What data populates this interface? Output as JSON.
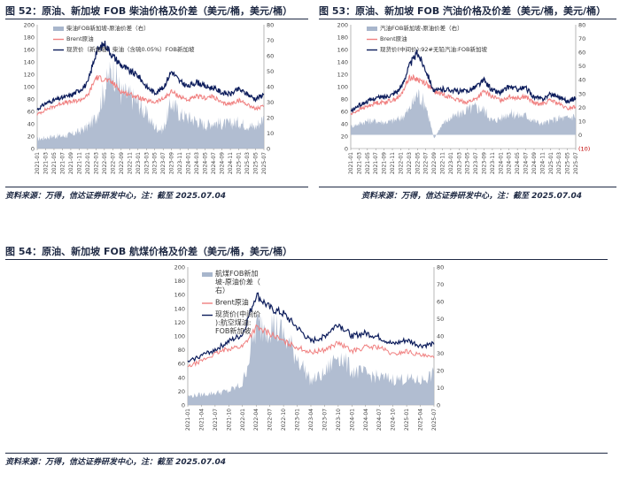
{
  "figures": [
    {
      "title": "图 52：原油、新加坡 FOB 柴油价格及价差（美元/桶，美元/桶）",
      "source": "资料来源：万得，信达证券研发中心，注：截至 2025.07.04"
    },
    {
      "title": "图 53：原油、新加坡 FOB 汽油价格及价差（美元/桶，美元/桶）",
      "source": "资料来源：万得，信达证券研发中心，注：截至 2025.07.04"
    },
    {
      "title": "图 54：原油、新加坡 FOB 航煤价格及价差（美元/桶，美元/桶）",
      "source": "资料来源：万得，信达证券研发中心，注：截至 2025.07.04"
    }
  ],
  "chart_data": [
    {
      "type": "area",
      "x": [
        "2021-01",
        "2021-03",
        "2021-05",
        "2021-07",
        "2021-09",
        "2021-11",
        "2022-01",
        "2022-03",
        "2022-05",
        "2022-07",
        "2022-09",
        "2022-11",
        "2023-01",
        "2023-03",
        "2023-05",
        "2023-07",
        "2023-09",
        "2023-11",
        "2024-01",
        "2024-03",
        "2024-05",
        "2024-07",
        "2024-09",
        "2024-11",
        "2025-01",
        "2025-03",
        "2025-05",
        "2025-07"
      ],
      "y_left_ticks": [
        "0",
        "20",
        "40",
        "60",
        "80",
        "100",
        "120",
        "140",
        "160",
        "180",
        "200"
      ],
      "y_right_ticks": [
        "0",
        "10",
        "20",
        "30",
        "40",
        "50",
        "60",
        "70",
        "80"
      ],
      "ylim_left": [
        0,
        200
      ],
      "ylim_right": [
        0,
        80
      ],
      "legend": "top-left",
      "colors": {
        "spread": "#a8b6cc",
        "brent": "#f08080",
        "product": "#0d1d5c"
      },
      "series": [
        {
          "name": "柴油FOB新加坡-原油价差（右）",
          "axis": "right",
          "style": "area",
          "values": [
            6,
            7,
            8,
            8,
            9,
            11,
            14,
            20,
            38,
            52,
            36,
            34,
            30,
            22,
            14,
            12,
            30,
            22,
            20,
            18,
            15,
            17,
            16,
            16,
            17,
            15,
            14,
            20
          ]
        },
        {
          "name": "Brent原油",
          "axis": "left",
          "style": "line",
          "values": [
            55,
            63,
            68,
            74,
            75,
            78,
            85,
            115,
            112,
            106,
            92,
            88,
            83,
            77,
            75,
            80,
            92,
            84,
            78,
            84,
            82,
            84,
            73,
            72,
            78,
            72,
            64,
            68
          ]
        },
        {
          "name": "现货价（新加坡：柴油（含硫0.05%）FOB新加坡",
          "axis": "left",
          "style": "line",
          "values": [
            63,
            73,
            78,
            82,
            86,
            94,
            105,
            155,
            170,
            150,
            135,
            125,
            118,
            100,
            90,
            98,
            125,
            108,
            100,
            108,
            100,
            98,
            90,
            88,
            96,
            88,
            80,
            88
          ]
        }
      ]
    },
    {
      "type": "area",
      "x": [
        "2021-01",
        "2021-03",
        "2021-05",
        "2021-07",
        "2021-09",
        "2021-11",
        "2022-01",
        "2022-03",
        "2022-05",
        "2022-07",
        "2022-09",
        "2022-11",
        "2023-01",
        "2023-03",
        "2023-05",
        "2023-07",
        "2023-09",
        "2023-11",
        "2024-01",
        "2024-03",
        "2024-05",
        "2024-07",
        "2024-09",
        "2024-11",
        "2025-01",
        "2025-03",
        "2025-05",
        "2025-07"
      ],
      "y_left_ticks": [
        "0",
        "20",
        "40",
        "60",
        "80",
        "100",
        "120",
        "140",
        "160",
        "180",
        "200"
      ],
      "y_right_ticks": [
        "(10)",
        "0",
        "10",
        "20",
        "30",
        "40",
        "50",
        "60",
        "70",
        "80"
      ],
      "ylim_left": [
        0,
        200
      ],
      "ylim_right": [
        -10,
        80
      ],
      "legend": "top-left",
      "colors": {
        "spread": "#a8b6cc",
        "brent": "#f08080",
        "product": "#0d1d5c"
      },
      "series": [
        {
          "name": "汽油FOB新加坡-原油价差（右）",
          "axis": "right",
          "style": "area",
          "values": [
            6,
            8,
            10,
            10,
            9,
            10,
            12,
            18,
            30,
            22,
            -3,
            8,
            12,
            15,
            18,
            20,
            18,
            10,
            12,
            16,
            14,
            14,
            10,
            8,
            10,
            12,
            12,
            14
          ]
        },
        {
          "name": "Brent原油",
          "axis": "left",
          "style": "line",
          "values": [
            55,
            63,
            68,
            74,
            75,
            78,
            85,
            115,
            112,
            106,
            92,
            88,
            83,
            77,
            75,
            80,
            92,
            84,
            78,
            84,
            82,
            84,
            73,
            72,
            78,
            72,
            64,
            68
          ]
        },
        {
          "name": "现货价(中间价):92#无铅汽油:FOB新加坡",
          "axis": "left",
          "style": "line",
          "values": [
            60,
            70,
            76,
            82,
            83,
            88,
            97,
            133,
            155,
            128,
            92,
            96,
            95,
            92,
            93,
            100,
            110,
            94,
            90,
            100,
            96,
            98,
            83,
            80,
            88,
            84,
            76,
            82
          ]
        }
      ]
    },
    {
      "type": "area",
      "x": [
        "2021-01",
        "2021-04",
        "2021-07",
        "2021-10",
        "2022-01",
        "2022-04",
        "2022-07",
        "2022-10",
        "2023-01",
        "2023-04",
        "2023-07",
        "2023-10",
        "2024-01",
        "2024-04",
        "2024-07",
        "2024-10",
        "2025-01",
        "2025-04",
        "2025-07"
      ],
      "y_left_ticks": [
        "0",
        "20",
        "40",
        "60",
        "80",
        "100",
        "120",
        "140",
        "160",
        "180",
        "200"
      ],
      "y_right_ticks": [
        "0",
        "10",
        "20",
        "30",
        "40",
        "50",
        "60",
        "70",
        "80"
      ],
      "ylim_left": [
        0,
        200
      ],
      "ylim_right": [
        0,
        80
      ],
      "legend": "top-left",
      "colors": {
        "spread": "#a8b6cc",
        "brent": "#f08080",
        "product": "#0d1d5c"
      },
      "series": [
        {
          "name": "航煤FOB新加坡-原油价差（右）",
          "axis": "right",
          "style": "area",
          "values": [
            5,
            6,
            7,
            8,
            12,
            45,
            48,
            40,
            28,
            14,
            18,
            30,
            20,
            18,
            16,
            15,
            15,
            14,
            18
          ]
        },
        {
          "name": "Brent原油",
          "axis": "left",
          "style": "line",
          "values": [
            55,
            64,
            74,
            82,
            85,
            112,
            104,
            92,
            84,
            76,
            80,
            90,
            78,
            84,
            84,
            73,
            78,
            72,
            68
          ]
        },
        {
          "name": "现货价(中间价):航空煤油:FOB新加坡",
          "axis": "left",
          "style": "line",
          "values": [
            62,
            72,
            80,
            92,
            102,
            160,
            140,
            132,
            112,
            92,
            100,
            118,
            100,
            104,
            98,
            88,
            94,
            86,
            88
          ]
        }
      ]
    }
  ]
}
